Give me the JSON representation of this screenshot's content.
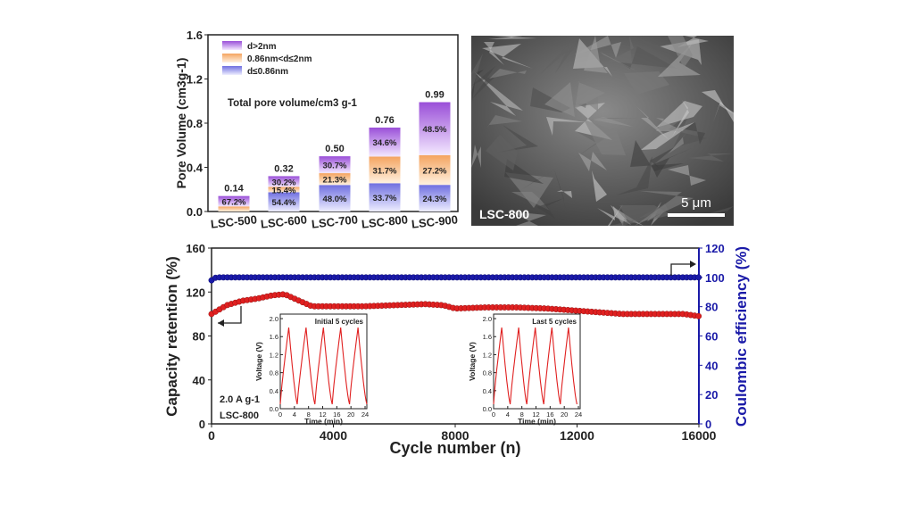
{
  "chart_data": [
    {
      "type": "bar",
      "stacked": true,
      "ylabel": "Pore Volume (cm3g-1)",
      "ylim": [
        0,
        1.6
      ],
      "yticks": [
        "0.0",
        "0.4",
        "0.8",
        "1.2",
        "1.6"
      ],
      "annotation": "Total pore volume/cm3 g-1",
      "categories": [
        "LSC-500",
        "LSC-600",
        "LSC-700",
        "LSC-800",
        "LSC-900"
      ],
      "totals": [
        0.14,
        0.32,
        0.5,
        0.76,
        0.99
      ],
      "total_labels": [
        "0.14",
        "0.32",
        "0.50",
        "0.76",
        "0.99"
      ],
      "legend": {
        "placement": "top-left",
        "entries": [
          "d>2nm",
          "0.86nm<d≤2nm",
          "d≤0.86nm"
        ]
      },
      "series": [
        {
          "name": "d≤0.86nm",
          "color": "#6f6fe0",
          "values": [
            0.0,
            0.174,
            0.24,
            0.256,
            0.241
          ],
          "labels": [
            "",
            "54.4%",
            "48.0%",
            "33.7%",
            "24.3%"
          ]
        },
        {
          "name": "0.86nm<d≤2nm",
          "color": "#f4a460",
          "values": [
            0.046,
            0.049,
            0.107,
            0.241,
            0.269
          ],
          "labels": [
            "",
            "15.4%",
            "21.3%",
            "31.7%",
            "27.2%"
          ]
        },
        {
          "name": "d>2nm",
          "color": "#9a4fd8",
          "values": [
            0.094,
            0.097,
            0.153,
            0.263,
            0.48
          ],
          "labels": [
            "67.2%",
            "30.2%",
            "30.7%",
            "34.6%",
            "48.5%"
          ]
        }
      ]
    },
    {
      "type": "image",
      "caption": "LSC-800",
      "scalebar": "5 μm"
    },
    {
      "type": "scatter",
      "xlabel": "Cycle number (n)",
      "ylabel": "Capacity retention (%)",
      "y2label": "Coulombic efficiency (%)",
      "xlim": [
        0,
        16000
      ],
      "ylim": [
        0,
        160
      ],
      "y2lim": [
        0,
        120
      ],
      "xticks": [
        "0",
        "4000",
        "8000",
        "12000",
        "16000"
      ],
      "yticks": [
        "0",
        "40",
        "80",
        "120",
        "160"
      ],
      "y2ticks": [
        "0",
        "20",
        "40",
        "60",
        "80",
        "100",
        "120"
      ],
      "annotations": [
        "2.0 A g-1",
        "LSC-800"
      ],
      "series": [
        {
          "name": "Capacity retention",
          "axis": "left",
          "color": "#e02020",
          "x": [
            0,
            500,
            1000,
            1500,
            2000,
            2400,
            2800,
            3300,
            4000,
            5000,
            6000,
            7000,
            7600,
            8000,
            9000,
            10000,
            11000,
            12000,
            12500,
            13500,
            14500,
            15500,
            16000
          ],
          "y": [
            100,
            108,
            112,
            114,
            117,
            118,
            113,
            107,
            107,
            107,
            108,
            109,
            108,
            105,
            106,
            106,
            105,
            103,
            102,
            100,
            100,
            100,
            98
          ]
        },
        {
          "name": "Coulombic efficiency",
          "axis": "right",
          "color": "#1a1aa8",
          "x": [
            0,
            150,
            16000
          ],
          "y": [
            98,
            100,
            100
          ]
        }
      ]
    },
    {
      "type": "line",
      "title": "Initial 5 cycles",
      "xlabel": "Time (min)",
      "ylabel": "Voltage (V)",
      "xlim": [
        0,
        24.5
      ],
      "ylim": [
        0,
        2.1
      ],
      "xticks": [
        "0",
        "4",
        "8",
        "12",
        "16",
        "20",
        "24"
      ],
      "yticks": [
        "0.0",
        "0.4",
        "0.8",
        "1.2",
        "1.6",
        "2.0"
      ],
      "x": [
        0,
        2.4,
        4.8,
        7.3,
        9.8,
        12.2,
        14.7,
        17.1,
        19.6,
        22,
        24.5
      ],
      "y": [
        0.1,
        1.8,
        0.1,
        1.8,
        0.1,
        1.8,
        0.1,
        1.8,
        0.1,
        1.8,
        0.1
      ]
    },
    {
      "type": "line",
      "title": "Last 5 cycles",
      "xlabel": "Time (min)",
      "ylabel": "Voltage (V)",
      "xlim": [
        0,
        24.5
      ],
      "ylim": [
        0,
        2.1
      ],
      "xticks": [
        "0",
        "4",
        "8",
        "12",
        "16",
        "20",
        "24"
      ],
      "yticks": [
        "0.0",
        "0.4",
        "0.8",
        "1.2",
        "1.6",
        "2.0"
      ],
      "x": [
        0,
        2.3,
        4.7,
        7.1,
        9.4,
        11.8,
        14.2,
        16.5,
        18.9,
        21.2,
        23.6
      ],
      "y": [
        0.1,
        1.8,
        0.1,
        1.8,
        0.1,
        1.8,
        0.1,
        1.8,
        0.1,
        1.8,
        0.1
      ]
    }
  ]
}
